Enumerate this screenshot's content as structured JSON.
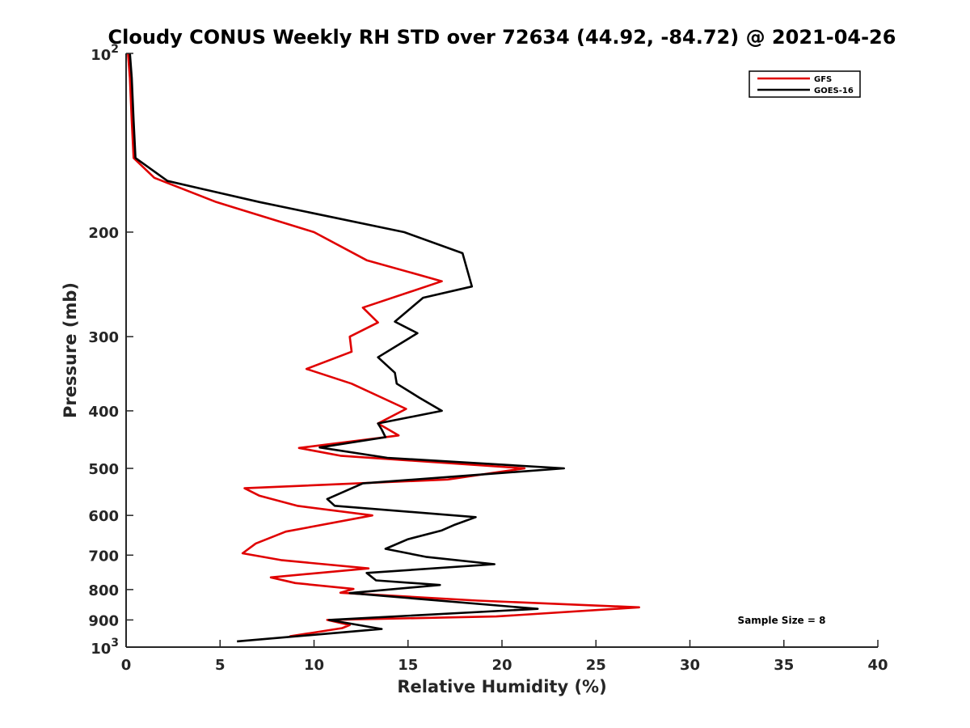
{
  "chart_data": {
    "type": "line",
    "title": "Cloudy CONUS Weekly RH STD over 72634 (44.92, -84.72) @ 2021-04-26",
    "xlabel": "Relative Humidity (%)",
    "ylabel": "Pressure (mb)",
    "xlim": [
      0,
      40
    ],
    "ylim": [
      100,
      1000
    ],
    "y_scale": "log",
    "y_reversed": true,
    "grid": false,
    "legend_position": "top-right",
    "annotation": "Sample Size = 8",
    "x_ticks": [
      "0",
      "5",
      "10",
      "15",
      "20",
      "25",
      "30",
      "35",
      "40"
    ],
    "y_ticks": [
      {
        "value": 200,
        "label": "200"
      },
      {
        "value": 300,
        "label": "300"
      },
      {
        "value": 400,
        "label": "400"
      },
      {
        "value": 500,
        "label": "500"
      },
      {
        "value": 600,
        "label": "600"
      },
      {
        "value": 700,
        "label": "700"
      },
      {
        "value": 800,
        "label": "800"
      },
      {
        "value": 900,
        "label": "900"
      }
    ],
    "y_ticks_power": [
      {
        "value": 100,
        "base": "10",
        "exp": "2"
      },
      {
        "value": 1000,
        "base": "10",
        "exp": "3"
      }
    ],
    "series": [
      {
        "name": "GFS",
        "color": "#e00000",
        "points": [
          [
            0.1,
            100
          ],
          [
            0.2,
            110
          ],
          [
            0.3,
            130
          ],
          [
            0.4,
            150
          ],
          [
            1.5,
            162
          ],
          [
            4.8,
            178
          ],
          [
            10.0,
            200
          ],
          [
            12.8,
            223
          ],
          [
            16.8,
            242
          ],
          [
            12.6,
            268
          ],
          [
            13.4,
            284
          ],
          [
            11.9,
            300
          ],
          [
            12.0,
            318
          ],
          [
            9.6,
            340
          ],
          [
            12.0,
            360
          ],
          [
            14.9,
            397
          ],
          [
            13.4,
            420
          ],
          [
            14.5,
            440
          ],
          [
            13.3,
            445
          ],
          [
            9.2,
            462
          ],
          [
            11.4,
            476
          ],
          [
            21.2,
            500
          ],
          [
            17.1,
            522
          ],
          [
            6.3,
            540
          ],
          [
            7.1,
            556
          ],
          [
            9.1,
            578
          ],
          [
            13.1,
            600
          ],
          [
            8.5,
            639
          ],
          [
            6.9,
            669
          ],
          [
            6.2,
            695
          ],
          [
            8.3,
            714
          ],
          [
            12.9,
            737
          ],
          [
            7.7,
            763
          ],
          [
            9.0,
            780
          ],
          [
            12.1,
            798
          ],
          [
            11.4,
            810
          ],
          [
            18.7,
            835
          ],
          [
            27.3,
            857
          ],
          [
            19.7,
            888
          ],
          [
            10.7,
            900
          ],
          [
            11.9,
            918
          ],
          [
            11.5,
            929
          ],
          [
            8.7,
            959
          ]
        ]
      },
      {
        "name": "GOES-16",
        "color": "#000000",
        "points": [
          [
            0.2,
            100
          ],
          [
            0.3,
            110
          ],
          [
            0.4,
            130
          ],
          [
            0.5,
            150
          ],
          [
            2.2,
            164
          ],
          [
            7.1,
            178
          ],
          [
            14.8,
            200
          ],
          [
            17.9,
            217
          ],
          [
            18.4,
            247
          ],
          [
            15.8,
            258
          ],
          [
            14.3,
            283
          ],
          [
            15.5,
            296
          ],
          [
            13.4,
            325
          ],
          [
            14.3,
            345
          ],
          [
            14.4,
            360
          ],
          [
            15.6,
            380
          ],
          [
            16.8,
            400
          ],
          [
            13.4,
            420
          ],
          [
            13.6,
            430
          ],
          [
            13.8,
            443
          ],
          [
            10.3,
            461
          ],
          [
            13.9,
            480
          ],
          [
            23.3,
            500
          ],
          [
            12.6,
            530
          ],
          [
            10.7,
            563
          ],
          [
            11.1,
            578
          ],
          [
            18.6,
            604
          ],
          [
            17.5,
            622
          ],
          [
            16.8,
            636
          ],
          [
            15.0,
            658
          ],
          [
            13.8,
            683
          ],
          [
            16.0,
            705
          ],
          [
            19.6,
            725
          ],
          [
            12.8,
            750
          ],
          [
            13.3,
            772
          ],
          [
            16.7,
            786
          ],
          [
            11.9,
            811
          ],
          [
            21.9,
            862
          ],
          [
            10.8,
            900
          ],
          [
            13.6,
            932
          ],
          [
            5.9,
            978
          ]
        ]
      }
    ]
  }
}
